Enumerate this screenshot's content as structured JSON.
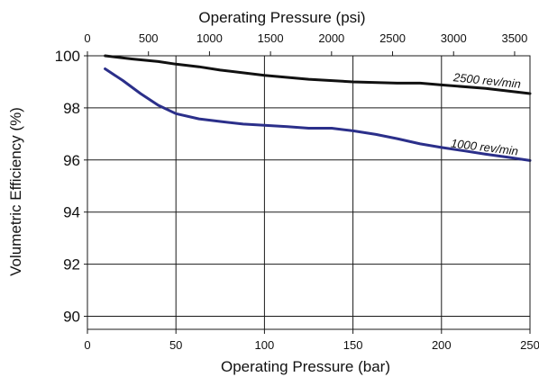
{
  "chart_data": {
    "type": "line",
    "title": "",
    "xlabel": "Operating Pressure (bar)",
    "x2label": "Operating Pressure (psi)",
    "ylabel": "Volumetric Efficiency (%)",
    "xlim": [
      0,
      250
    ],
    "ylim": [
      89.5,
      100
    ],
    "x_ticks": [
      0,
      50,
      100,
      150,
      200,
      250
    ],
    "x2_ticks": [
      0,
      500,
      1000,
      1500,
      2000,
      2500,
      3000,
      3500
    ],
    "y_ticks": [
      90,
      92,
      94,
      96,
      98,
      100
    ],
    "grid": true,
    "series": [
      {
        "name": "2500 rev/min",
        "color": "#111111",
        "x": [
          10,
          25,
          40,
          50,
          63,
          75,
          100,
          125,
          150,
          175,
          188,
          200,
          225,
          250
        ],
        "y": [
          100.0,
          99.88,
          99.78,
          99.68,
          99.58,
          99.45,
          99.25,
          99.1,
          99.0,
          98.95,
          98.95,
          98.88,
          98.75,
          98.55
        ]
      },
      {
        "name": "1000 rev/min",
        "color": "#2b2f8a",
        "x": [
          10,
          20,
          30,
          40,
          50,
          63,
          75,
          88,
          100,
          113,
          125,
          138,
          150,
          163,
          175,
          188,
          200,
          213,
          225,
          238,
          250
        ],
        "y": [
          99.5,
          99.05,
          98.55,
          98.1,
          97.78,
          97.58,
          97.48,
          97.38,
          97.33,
          97.28,
          97.22,
          97.22,
          97.12,
          96.98,
          96.82,
          96.62,
          96.48,
          96.35,
          96.22,
          96.1,
          95.98
        ]
      }
    ]
  }
}
